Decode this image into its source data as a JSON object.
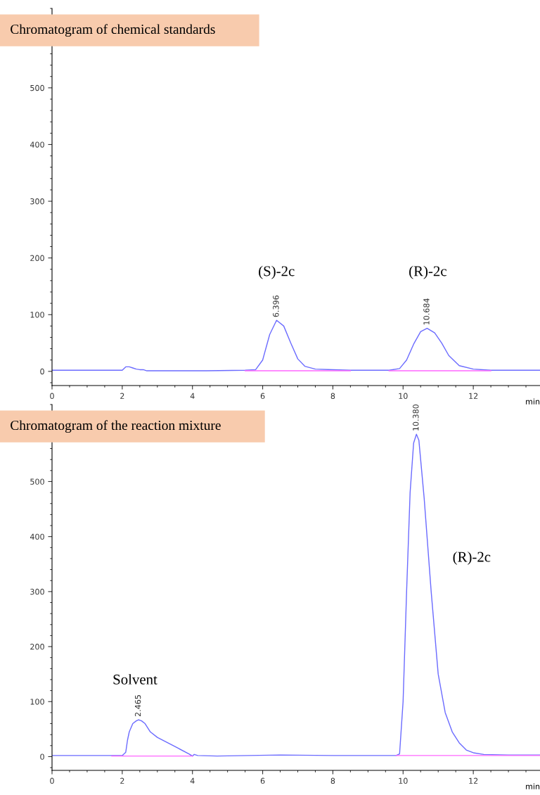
{
  "chart_data": [
    {
      "type": "line",
      "title": "Chromatogram of chemical standards",
      "xlabel": "min",
      "xlim": [
        0,
        13.9
      ],
      "xticks": [
        0,
        2,
        4,
        6,
        8,
        10,
        12
      ],
      "ylim": [
        -25,
        640
      ],
      "yticks": [
        0,
        100,
        200,
        300,
        400,
        500
      ],
      "grid": false,
      "legend": false,
      "marker": "none",
      "line_style": "solid",
      "series": [
        {
          "color": "#6b6bff",
          "x": [
            0,
            2,
            2.1,
            2.2,
            2.3,
            2.4,
            2.5,
            2.6,
            2.7,
            4.4,
            5.5,
            5.8,
            6.0,
            6.2,
            6.396,
            6.6,
            6.8,
            7.0,
            7.2,
            7.5,
            8.0,
            8.5,
            9.6,
            9.9,
            10.1,
            10.3,
            10.5,
            10.684,
            10.9,
            11.1,
            11.3,
            11.6,
            12,
            12.5,
            13.9
          ],
          "values": [
            2,
            2,
            8,
            8,
            6,
            4,
            3,
            3,
            1,
            1,
            2,
            3,
            20,
            65,
            90,
            80,
            50,
            22,
            9,
            4,
            3,
            2,
            2,
            5,
            20,
            48,
            70,
            76,
            68,
            50,
            28,
            10,
            4,
            2,
            2
          ]
        },
        {
          "color": "#ff66ff",
          "x": [
            5.5,
            8.5
          ],
          "values": [
            1,
            1
          ]
        },
        {
          "color": "#ff66ff",
          "x": [
            9.6,
            12.5
          ],
          "values": [
            1,
            1
          ]
        }
      ],
      "annotations": [
        {
          "text": "6.396",
          "x": 6.396,
          "y": 90
        },
        {
          "text": "10.684",
          "x": 10.684,
          "y": 76
        },
        "(S)-2c",
        "(R)-2c"
      ]
    },
    {
      "type": "line",
      "title": "Chromatogram of the reaction mixture",
      "xlabel": "min",
      "xlim": [
        0,
        13.9
      ],
      "xticks": [
        0,
        2,
        4,
        6,
        8,
        10,
        12
      ],
      "ylim": [
        -25,
        640
      ],
      "yticks": [
        0,
        100,
        200,
        300,
        400,
        500
      ],
      "grid": false,
      "legend": false,
      "marker": "none",
      "line_style": "solid",
      "series": [
        {
          "color": "#6b6bff",
          "x": [
            0,
            1.7,
            2.0,
            2.1,
            2.15,
            2.2,
            2.3,
            2.4,
            2.465,
            2.55,
            2.65,
            2.8,
            3.0,
            3.3,
            3.6,
            3.9,
            4.0,
            4.05,
            4.15,
            4.7,
            6.5,
            8.0,
            9.8,
            9.9,
            10.0,
            10.1,
            10.2,
            10.3,
            10.38,
            10.45,
            10.6,
            10.8,
            11.0,
            11.2,
            11.4,
            11.6,
            11.8,
            12.0,
            12.3,
            13,
            13.9
          ],
          "values": [
            2,
            2,
            2,
            8,
            30,
            45,
            60,
            65,
            67,
            65,
            60,
            45,
            35,
            25,
            15,
            5,
            1,
            4,
            2,
            1,
            3,
            2,
            2,
            5,
            100,
            300,
            480,
            570,
            586,
            575,
            470,
            300,
            150,
            80,
            45,
            25,
            12,
            7,
            4,
            3,
            3
          ]
        },
        {
          "color": "#ff66ff",
          "x": [
            1.7,
            4.0
          ],
          "values": [
            1,
            1
          ]
        },
        {
          "color": "#ff66ff",
          "x": [
            9.8,
            13.9
          ],
          "values": [
            2,
            2
          ]
        }
      ],
      "annotations": [
        {
          "text": "2.465",
          "x": 2.465,
          "y": 67
        },
        {
          "text": "10.380",
          "x": 10.38,
          "y": 586
        },
        "Solvent",
        "(R)-2c"
      ]
    }
  ]
}
